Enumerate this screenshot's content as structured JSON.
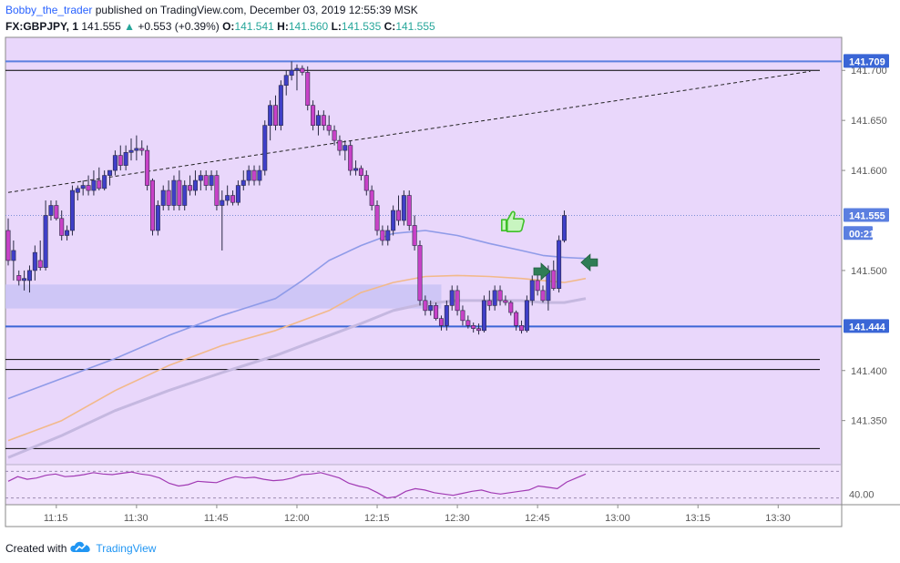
{
  "header": {
    "author": "Bobby_the_trader",
    "published_text": "published on TradingView.com, December 03, 2019 12:55:39 MSK",
    "symbol": "FX:GBPJPY, 1",
    "last": "141.555",
    "change": "+0.553 (+0.39%)",
    "o_label": "O:",
    "o_value": "141.541",
    "h_label": "H:",
    "h_value": "141.560",
    "l_label": "L:",
    "l_value": "141.535",
    "c_label": "C:",
    "c_value": "141.555"
  },
  "footer": {
    "created_with": "Created with",
    "brand": "TradingView"
  },
  "colors": {
    "panel_bg": "#e9d7fb",
    "bull": "#3f3fc8",
    "bear": "#c842c8",
    "support_band": "#c9c3f5",
    "ma_fast": "#8f9be8",
    "ma_mid": "#f2b98a",
    "ma_slow": "#c5b8e0",
    "rsi": "#a13ab4",
    "axis_blue_tag": "#3a66d6",
    "axis_gray_tag": "#5b7fe0"
  },
  "chart_data": {
    "type": "candlestick",
    "symbol": "FX:GBPJPY",
    "timeframe": "1",
    "xlim": [
      "11:06",
      "13:38"
    ],
    "ylim": [
      141.306,
      141.733
    ],
    "y_ticks": [
      "141.700",
      "141.650",
      "141.600",
      "141.500",
      "141.400",
      "141.350"
    ],
    "x_ticks": [
      "11:15",
      "11:30",
      "11:45",
      "12:00",
      "12:15",
      "12:30",
      "12:45",
      "13:00",
      "13:15",
      "13:30"
    ],
    "price_tags": [
      {
        "label": "141.709",
        "value": 141.709,
        "style": "blue"
      },
      {
        "label": "141.555",
        "value": 141.555,
        "style": "gray"
      },
      {
        "label": "00:21",
        "value": 141.537,
        "style": "gray"
      },
      {
        "label": "141.444",
        "value": 141.444,
        "style": "blue"
      }
    ],
    "horizontal_lines": [
      {
        "value": 141.709,
        "color": "#5b7fe0",
        "width": 2
      },
      {
        "value": 141.7,
        "color": "#000000",
        "width": 1
      },
      {
        "value": 141.444,
        "color": "#3a66d6",
        "width": 2
      },
      {
        "value": 141.411,
        "color": "#000000",
        "width": 1
      },
      {
        "value": 141.401,
        "color": "#000000",
        "width": 1
      },
      {
        "value": 141.322,
        "color": "#000000",
        "width": 1
      }
    ],
    "trend_line": {
      "from": {
        "x": "11:06",
        "y": 141.578
      },
      "to": {
        "x": "13:36",
        "y": 141.699
      }
    },
    "support_zone": {
      "y1": 141.462,
      "y2": 141.486
    },
    "candles": [
      {
        "t": "11:06",
        "o": 141.54,
        "h": 141.552,
        "l": 141.505,
        "c": 141.51
      },
      {
        "t": "11:07",
        "o": 141.51,
        "h": 141.53,
        "l": 141.49,
        "c": 141.52
      },
      {
        "t": "11:08",
        "o": 141.495,
        "h": 141.5,
        "l": 141.485,
        "c": 141.49
      },
      {
        "t": "11:09",
        "o": 141.49,
        "h": 141.5,
        "l": 141.48,
        "c": 141.492
      },
      {
        "t": "11:10",
        "o": 141.49,
        "h": 141.505,
        "l": 141.478,
        "c": 141.5
      },
      {
        "t": "11:11",
        "o": 141.5,
        "h": 141.525,
        "l": 141.49,
        "c": 141.518
      },
      {
        "t": "11:12",
        "o": 141.51,
        "h": 141.53,
        "l": 141.5,
        "c": 141.503
      },
      {
        "t": "11:13",
        "o": 141.503,
        "h": 141.57,
        "l": 141.5,
        "c": 141.555
      },
      {
        "t": "11:14",
        "o": 141.555,
        "h": 141.57,
        "l": 141.55,
        "c": 141.565
      },
      {
        "t": "11:15",
        "o": 141.565,
        "h": 141.57,
        "l": 141.55,
        "c": 141.552
      },
      {
        "t": "11:16",
        "o": 141.552,
        "h": 141.56,
        "l": 141.53,
        "c": 141.535
      },
      {
        "t": "11:17",
        "o": 141.535,
        "h": 141.545,
        "l": 141.53,
        "c": 141.54
      },
      {
        "t": "11:18",
        "o": 141.54,
        "h": 141.585,
        "l": 141.535,
        "c": 141.58
      },
      {
        "t": "11:19",
        "o": 141.578,
        "h": 141.585,
        "l": 141.57,
        "c": 141.582
      },
      {
        "t": "11:20",
        "o": 141.582,
        "h": 141.59,
        "l": 141.575,
        "c": 141.585
      },
      {
        "t": "11:21",
        "o": 141.585,
        "h": 141.595,
        "l": 141.575,
        "c": 141.58
      },
      {
        "t": "11:22",
        "o": 141.58,
        "h": 141.6,
        "l": 141.575,
        "c": 141.59
      },
      {
        "t": "11:23",
        "o": 141.59,
        "h": 141.603,
        "l": 141.58,
        "c": 141.582
      },
      {
        "t": "11:24",
        "o": 141.582,
        "h": 141.6,
        "l": 141.58,
        "c": 141.595
      },
      {
        "t": "11:25",
        "o": 141.595,
        "h": 141.6,
        "l": 141.585,
        "c": 141.6
      },
      {
        "t": "11:26",
        "o": 141.6,
        "h": 141.62,
        "l": 141.595,
        "c": 141.615
      },
      {
        "t": "11:27",
        "o": 141.615,
        "h": 141.625,
        "l": 141.6,
        "c": 141.605
      },
      {
        "t": "11:28",
        "o": 141.605,
        "h": 141.625,
        "l": 141.6,
        "c": 141.618
      },
      {
        "t": "11:29",
        "o": 141.618,
        "h": 141.632,
        "l": 141.61,
        "c": 141.62
      },
      {
        "t": "11:30",
        "o": 141.62,
        "h": 141.635,
        "l": 141.61,
        "c": 141.622
      },
      {
        "t": "11:31",
        "o": 141.622,
        "h": 141.63,
        "l": 141.615,
        "c": 141.62
      },
      {
        "t": "11:32",
        "o": 141.62,
        "h": 141.625,
        "l": 141.58,
        "c": 141.585
      },
      {
        "t": "11:33",
        "o": 141.59,
        "h": 141.592,
        "l": 141.535,
        "c": 141.54
      },
      {
        "t": "11:34",
        "o": 141.54,
        "h": 141.57,
        "l": 141.535,
        "c": 141.565
      },
      {
        "t": "11:35",
        "o": 141.565,
        "h": 141.585,
        "l": 141.56,
        "c": 141.58
      },
      {
        "t": "11:36",
        "o": 141.58,
        "h": 141.59,
        "l": 141.56,
        "c": 141.565
      },
      {
        "t": "11:37",
        "o": 141.565,
        "h": 141.595,
        "l": 141.56,
        "c": 141.59
      },
      {
        "t": "11:38",
        "o": 141.59,
        "h": 141.6,
        "l": 141.56,
        "c": 141.565
      },
      {
        "t": "11:39",
        "o": 141.565,
        "h": 141.59,
        "l": 141.56,
        "c": 141.585
      },
      {
        "t": "11:40",
        "o": 141.585,
        "h": 141.595,
        "l": 141.575,
        "c": 141.58
      },
      {
        "t": "11:41",
        "o": 141.58,
        "h": 141.6,
        "l": 141.575,
        "c": 141.59
      },
      {
        "t": "11:42",
        "o": 141.59,
        "h": 141.6,
        "l": 141.58,
        "c": 141.595
      },
      {
        "t": "11:43",
        "o": 141.595,
        "h": 141.6,
        "l": 141.58,
        "c": 141.585
      },
      {
        "t": "11:44",
        "o": 141.585,
        "h": 141.6,
        "l": 141.58,
        "c": 141.595
      },
      {
        "t": "11:45",
        "o": 141.595,
        "h": 141.6,
        "l": 141.56,
        "c": 141.565
      },
      {
        "t": "11:46",
        "o": 141.565,
        "h": 141.58,
        "l": 141.52,
        "c": 141.57
      },
      {
        "t": "11:47",
        "o": 141.57,
        "h": 141.585,
        "l": 141.565,
        "c": 141.575
      },
      {
        "t": "11:48",
        "o": 141.575,
        "h": 141.58,
        "l": 141.565,
        "c": 141.568
      },
      {
        "t": "11:49",
        "o": 141.568,
        "h": 141.59,
        "l": 141.565,
        "c": 141.585
      },
      {
        "t": "11:50",
        "o": 141.585,
        "h": 141.6,
        "l": 141.58,
        "c": 141.59
      },
      {
        "t": "11:51",
        "o": 141.59,
        "h": 141.605,
        "l": 141.585,
        "c": 141.6
      },
      {
        "t": "11:52",
        "o": 141.6,
        "h": 141.605,
        "l": 141.585,
        "c": 141.59
      },
      {
        "t": "11:53",
        "o": 141.59,
        "h": 141.605,
        "l": 141.585,
        "c": 141.6
      },
      {
        "t": "11:54",
        "o": 141.6,
        "h": 141.65,
        "l": 141.595,
        "c": 141.645
      },
      {
        "t": "11:55",
        "o": 141.645,
        "h": 141.67,
        "l": 141.63,
        "c": 141.665
      },
      {
        "t": "11:56",
        "o": 141.665,
        "h": 141.675,
        "l": 141.64,
        "c": 141.645
      },
      {
        "t": "11:57",
        "o": 141.645,
        "h": 141.69,
        "l": 141.64,
        "c": 141.685
      },
      {
        "t": "11:58",
        "o": 141.685,
        "h": 141.7,
        "l": 141.675,
        "c": 141.695
      },
      {
        "t": "11:59",
        "o": 141.695,
        "h": 141.709,
        "l": 141.69,
        "c": 141.7
      },
      {
        "t": "12:00",
        "o": 141.7,
        "h": 141.706,
        "l": 141.68,
        "c": 141.702
      },
      {
        "t": "12:01",
        "o": 141.702,
        "h": 141.705,
        "l": 141.695,
        "c": 141.698
      },
      {
        "t": "12:02",
        "o": 141.698,
        "h": 141.704,
        "l": 141.66,
        "c": 141.665
      },
      {
        "t": "12:03",
        "o": 141.665,
        "h": 141.67,
        "l": 141.64,
        "c": 141.645
      },
      {
        "t": "12:04",
        "o": 141.645,
        "h": 141.66,
        "l": 141.635,
        "c": 141.655
      },
      {
        "t": "12:05",
        "o": 141.655,
        "h": 141.66,
        "l": 141.64,
        "c": 141.645
      },
      {
        "t": "12:06",
        "o": 141.645,
        "h": 141.655,
        "l": 141.635,
        "c": 141.64
      },
      {
        "t": "12:07",
        "o": 141.64,
        "h": 141.645,
        "l": 141.625,
        "c": 141.63
      },
      {
        "t": "12:08",
        "o": 141.63,
        "h": 141.635,
        "l": 141.615,
        "c": 141.62
      },
      {
        "t": "12:09",
        "o": 141.62,
        "h": 141.63,
        "l": 141.61,
        "c": 141.625
      },
      {
        "t": "12:10",
        "o": 141.625,
        "h": 141.63,
        "l": 141.595,
        "c": 141.6
      },
      {
        "t": "12:11",
        "o": 141.6,
        "h": 141.61,
        "l": 141.595,
        "c": 141.602
      },
      {
        "t": "12:12",
        "o": 141.602,
        "h": 141.605,
        "l": 141.59,
        "c": 141.595
      },
      {
        "t": "12:13",
        "o": 141.595,
        "h": 141.6,
        "l": 141.575,
        "c": 141.58
      },
      {
        "t": "12:14",
        "o": 141.58,
        "h": 141.585,
        "l": 141.56,
        "c": 141.565
      },
      {
        "t": "12:15",
        "o": 141.565,
        "h": 141.57,
        "l": 141.535,
        "c": 141.54
      },
      {
        "t": "12:16",
        "o": 141.54,
        "h": 141.545,
        "l": 141.525,
        "c": 141.53
      },
      {
        "t": "12:17",
        "o": 141.53,
        "h": 141.545,
        "l": 141.525,
        "c": 141.54
      },
      {
        "t": "12:18",
        "o": 141.54,
        "h": 141.565,
        "l": 141.535,
        "c": 141.56
      },
      {
        "t": "12:19",
        "o": 141.56,
        "h": 141.575,
        "l": 141.545,
        "c": 141.55
      },
      {
        "t": "12:20",
        "o": 141.55,
        "h": 141.58,
        "l": 141.545,
        "c": 141.575
      },
      {
        "t": "12:21",
        "o": 141.575,
        "h": 141.58,
        "l": 141.54,
        "c": 141.545
      },
      {
        "t": "12:22",
        "o": 141.545,
        "h": 141.555,
        "l": 141.52,
        "c": 141.525
      },
      {
        "t": "12:23",
        "o": 141.525,
        "h": 141.53,
        "l": 141.465,
        "c": 141.47
      },
      {
        "t": "12:24",
        "o": 141.47,
        "h": 141.475,
        "l": 141.455,
        "c": 141.46
      },
      {
        "t": "12:25",
        "o": 141.46,
        "h": 141.47,
        "l": 141.455,
        "c": 141.465
      },
      {
        "t": "12:26",
        "o": 141.465,
        "h": 141.468,
        "l": 141.45,
        "c": 141.452
      },
      {
        "t": "12:27",
        "o": 141.452,
        "h": 141.455,
        "l": 141.44,
        "c": 141.445
      },
      {
        "t": "12:28",
        "o": 141.445,
        "h": 141.47,
        "l": 141.44,
        "c": 141.465
      },
      {
        "t": "12:29",
        "o": 141.465,
        "h": 141.485,
        "l": 141.46,
        "c": 141.48
      },
      {
        "t": "12:30",
        "o": 141.48,
        "h": 141.485,
        "l": 141.455,
        "c": 141.46
      },
      {
        "t": "12:31",
        "o": 141.46,
        "h": 141.465,
        "l": 141.445,
        "c": 141.45
      },
      {
        "t": "12:32",
        "o": 141.45,
        "h": 141.455,
        "l": 141.442,
        "c": 141.445
      },
      {
        "t": "12:33",
        "o": 141.445,
        "h": 141.448,
        "l": 141.438,
        "c": 141.442
      },
      {
        "t": "12:34",
        "o": 141.442,
        "h": 141.447,
        "l": 141.436,
        "c": 141.44
      },
      {
        "t": "12:35",
        "o": 141.44,
        "h": 141.475,
        "l": 141.438,
        "c": 141.47
      },
      {
        "t": "12:36",
        "o": 141.47,
        "h": 141.48,
        "l": 141.46,
        "c": 141.465
      },
      {
        "t": "12:37",
        "o": 141.465,
        "h": 141.485,
        "l": 141.46,
        "c": 141.48
      },
      {
        "t": "12:38",
        "o": 141.48,
        "h": 141.485,
        "l": 141.465,
        "c": 141.47
      },
      {
        "t": "12:39",
        "o": 141.47,
        "h": 141.475,
        "l": 141.465,
        "c": 141.468
      },
      {
        "t": "12:40",
        "o": 141.468,
        "h": 141.47,
        "l": 141.455,
        "c": 141.458
      },
      {
        "t": "12:41",
        "o": 141.458,
        "h": 141.46,
        "l": 141.44,
        "c": 141.445
      },
      {
        "t": "12:42",
        "o": 141.445,
        "h": 141.45,
        "l": 141.437,
        "c": 141.44
      },
      {
        "t": "12:43",
        "o": 141.44,
        "h": 141.475,
        "l": 141.438,
        "c": 141.47
      },
      {
        "t": "12:44",
        "o": 141.47,
        "h": 141.495,
        "l": 141.465,
        "c": 141.49
      },
      {
        "t": "12:45",
        "o": 141.49,
        "h": 141.5,
        "l": 141.475,
        "c": 141.48
      },
      {
        "t": "12:46",
        "o": 141.48,
        "h": 141.485,
        "l": 141.468,
        "c": 141.47
      },
      {
        "t": "12:47",
        "o": 141.47,
        "h": 141.505,
        "l": 141.46,
        "c": 141.5
      },
      {
        "t": "12:48",
        "o": 141.5,
        "h": 141.51,
        "l": 141.48,
        "c": 141.482
      },
      {
        "t": "12:49",
        "o": 141.482,
        "h": 141.535,
        "l": 141.478,
        "c": 141.53
      },
      {
        "t": "12:50",
        "o": 141.53,
        "h": 141.56,
        "l": 141.528,
        "c": 141.555
      }
    ],
    "moving_averages": [
      {
        "color": "#8f9be8",
        "points": [
          [
            0,
            141.372
          ],
          [
            10,
            141.392
          ],
          [
            20,
            141.412
          ],
          [
            30,
            141.435
          ],
          [
            40,
            141.455
          ],
          [
            50,
            141.472
          ],
          [
            55,
            141.49
          ],
          [
            60,
            141.51
          ],
          [
            66,
            141.525
          ],
          [
            72,
            141.537
          ],
          [
            78,
            141.54
          ],
          [
            84,
            141.535
          ],
          [
            90,
            141.527
          ],
          [
            96,
            141.52
          ],
          [
            100,
            141.515
          ],
          [
            104,
            141.513
          ],
          [
            108,
            141.512
          ]
        ]
      },
      {
        "color": "#f2b98a",
        "points": [
          [
            0,
            141.33
          ],
          [
            10,
            141.35
          ],
          [
            20,
            141.38
          ],
          [
            30,
            141.405
          ],
          [
            40,
            141.425
          ],
          [
            50,
            141.44
          ],
          [
            60,
            141.46
          ],
          [
            66,
            141.478
          ],
          [
            72,
            141.488
          ],
          [
            78,
            141.494
          ],
          [
            84,
            141.495
          ],
          [
            90,
            141.494
          ],
          [
            96,
            141.492
          ],
          [
            100,
            141.49
          ],
          [
            104,
            141.488
          ],
          [
            108,
            141.492
          ]
        ]
      },
      {
        "color": "#c5b8e0",
        "points": [
          [
            0,
            141.313
          ],
          [
            10,
            141.335
          ],
          [
            20,
            141.36
          ],
          [
            30,
            141.38
          ],
          [
            40,
            141.398
          ],
          [
            50,
            141.415
          ],
          [
            60,
            141.435
          ],
          [
            66,
            141.447
          ],
          [
            72,
            141.46
          ],
          [
            78,
            141.467
          ],
          [
            84,
            141.47
          ],
          [
            90,
            141.47
          ],
          [
            96,
            141.47
          ],
          [
            100,
            141.468
          ],
          [
            104,
            141.468
          ],
          [
            108,
            141.472
          ]
        ]
      }
    ],
    "annotations": [
      {
        "type": "thumbs-up",
        "x": 94,
        "y": 141.548
      },
      {
        "type": "arrow-right",
        "x": 100,
        "y": 141.499
      },
      {
        "type": "arrow-left",
        "x": 108.5,
        "y": 141.508
      }
    ],
    "rsi": {
      "label": "40.00",
      "levels": [
        70,
        30
      ],
      "ylim": [
        20,
        80
      ],
      "values": [
        55,
        62,
        58,
        60,
        64,
        66,
        62,
        63,
        65,
        68,
        66,
        65,
        67,
        69,
        66,
        64,
        60,
        52,
        48,
        50,
        55,
        54,
        53,
        58,
        62,
        60,
        61,
        58,
        56,
        57,
        60,
        65,
        66,
        68,
        64,
        60,
        52,
        48,
        45,
        38,
        30,
        32,
        40,
        44,
        42,
        38,
        36,
        34,
        37,
        40,
        42,
        38,
        36,
        38,
        40,
        42,
        48,
        46,
        44,
        54,
        60,
        66
      ]
    }
  }
}
